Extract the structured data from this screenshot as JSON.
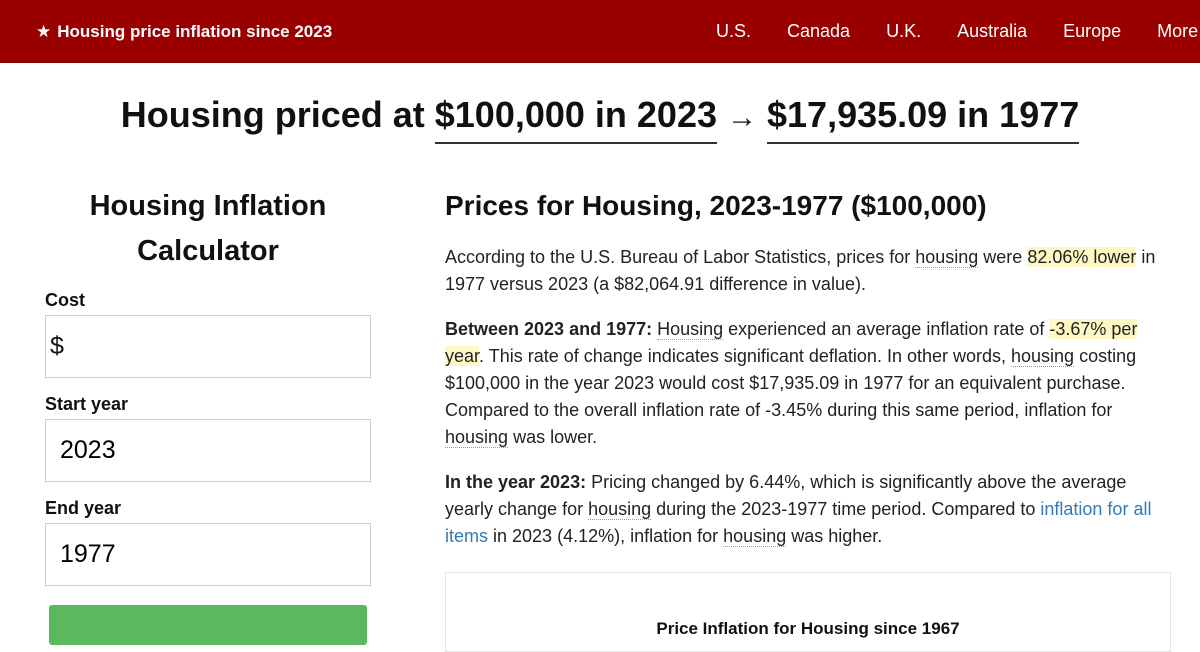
{
  "nav": {
    "brand_star": "★",
    "brand": "Housing price inflation since 2023",
    "links": [
      "U.S.",
      "Canada",
      "U.K.",
      "Australia",
      "Europe",
      "More"
    ]
  },
  "headline": {
    "prefix": "Housing priced at",
    "from": "$100,000 in 2023",
    "arrow": "→",
    "to": "$17,935.09 in 1977"
  },
  "calculator": {
    "title": "Housing Inflation Calculator",
    "cost_label": "Cost",
    "cost_prefix": "$",
    "cost_value": "",
    "start_label": "Start year",
    "start_value": "2023",
    "end_label": "End year",
    "end_value": "1977"
  },
  "main": {
    "title": "Prices for Housing, 2023-1977 ($100,000)",
    "p1": {
      "t1": "According to the U.S. Bureau of Labor Statistics, prices for ",
      "w1": "housing",
      "t2": " were ",
      "hl": "82.06% lower",
      "t3": " in 1977 versus 2023 (a $82,064.91 difference in value)."
    },
    "p2": {
      "lead": "Between 2023 and 1977:",
      "w1": "Housing",
      "t1": " experienced an average inflation rate of ",
      "hl": "-3.67% per year",
      "t2": ". This rate of change indicates significant deflation. In other words, ",
      "w2": "housing",
      "t3": " costing $100,000 in the year 2023 would cost $17,935.09 in 1977 for an equivalent purchase. Compared to the overall inflation rate of -3.45% during this same period, inflation for ",
      "w3": "housing",
      "t4": " was lower."
    },
    "p3": {
      "lead": "In the year 2023:",
      "t1": " Pricing changed by 6.44%, which is significantly above the average yearly change for ",
      "w1": "housing",
      "t2": " during the 2023-1977 time period. Compared to ",
      "link": "inflation for all items",
      "t3": " in 2023 (4.12%), inflation for ",
      "w2": "housing",
      "t4": " was higher."
    },
    "chart_title": "Price Inflation for Housing since 1967"
  }
}
